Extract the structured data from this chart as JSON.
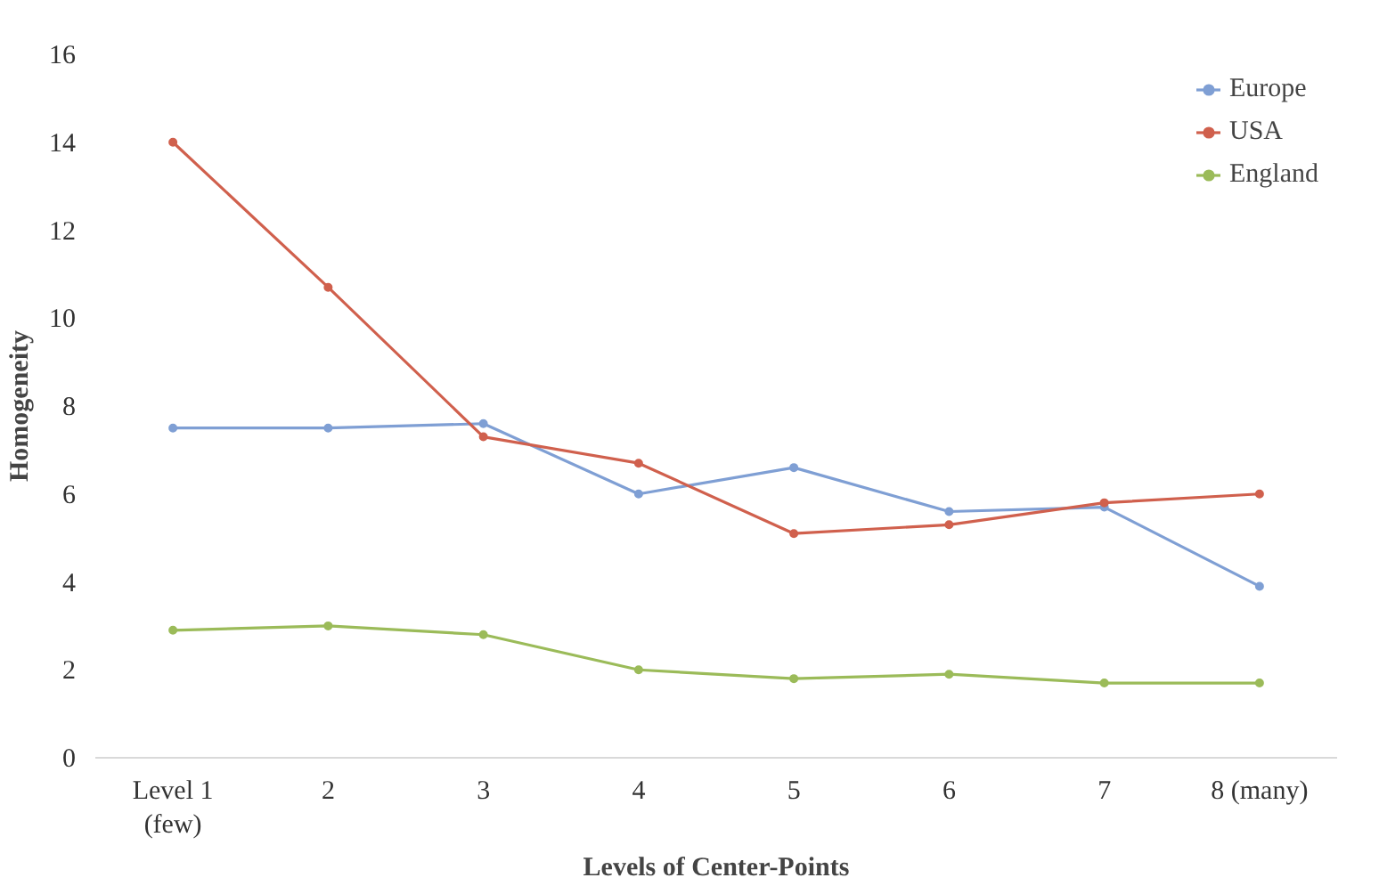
{
  "chart_data": {
    "type": "line",
    "xlabel": "Levels of Center-Points",
    "ylabel": "Homogeneity",
    "categories": [
      "Level 1\n(few)",
      "2",
      "3",
      "4",
      "5",
      "6",
      "7",
      "8 (many)"
    ],
    "series": [
      {
        "name": "Europe",
        "color": "#7f9fd4",
        "values": [
          7.5,
          7.5,
          7.6,
          6.0,
          6.6,
          5.6,
          5.7,
          3.9
        ]
      },
      {
        "name": "USA",
        "color": "#d0604d",
        "values": [
          14.0,
          10.7,
          7.3,
          6.7,
          5.1,
          5.3,
          5.8,
          6.0
        ]
      },
      {
        "name": "England",
        "color": "#9bbb59",
        "values": [
          2.9,
          3.0,
          2.8,
          2.0,
          1.8,
          1.9,
          1.7,
          1.7
        ]
      }
    ],
    "ylim": [
      0,
      16
    ],
    "yticks": [
      0,
      2,
      4,
      6,
      8,
      10,
      12,
      14,
      16
    ],
    "grid": false,
    "legend": "top right",
    "marker": "circle",
    "line_style": "solid"
  }
}
